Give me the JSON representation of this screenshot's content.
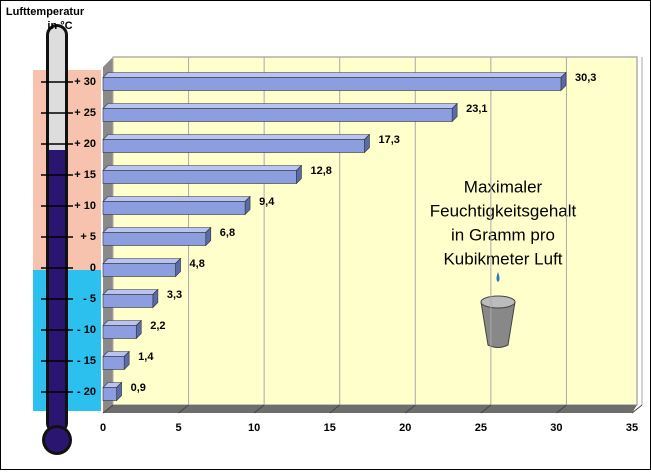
{
  "chart_data": {
    "type": "bar",
    "orientation": "horizontal",
    "y_label": [
      "Lufttemperatur",
      "in °C"
    ],
    "annotation": [
      "Maximaler",
      "Feuchtigkeitsgehalt",
      "in Gramm pro",
      "Kubikmeter Luft"
    ],
    "categories": [
      "+ 30",
      "+ 25",
      "+ 20",
      "+ 15",
      "+ 10",
      "+ 5",
      "0",
      "- 5",
      "- 10",
      "- 15",
      "- 20"
    ],
    "values": [
      30.3,
      23.1,
      17.3,
      12.8,
      9.4,
      6.8,
      4.8,
      3.3,
      2.2,
      1.4,
      0.9
    ],
    "value_labels": [
      "30,3",
      "23,1",
      "17,3",
      "12,8",
      "9,4",
      "6,8",
      "4,8",
      "3,3",
      "2,2",
      "1,4",
      "0,9"
    ],
    "color": "#8c9ee0",
    "xlim": [
      0,
      35
    ],
    "xticks": [
      0,
      5,
      10,
      15,
      20,
      25,
      30,
      35
    ],
    "grid": true
  }
}
